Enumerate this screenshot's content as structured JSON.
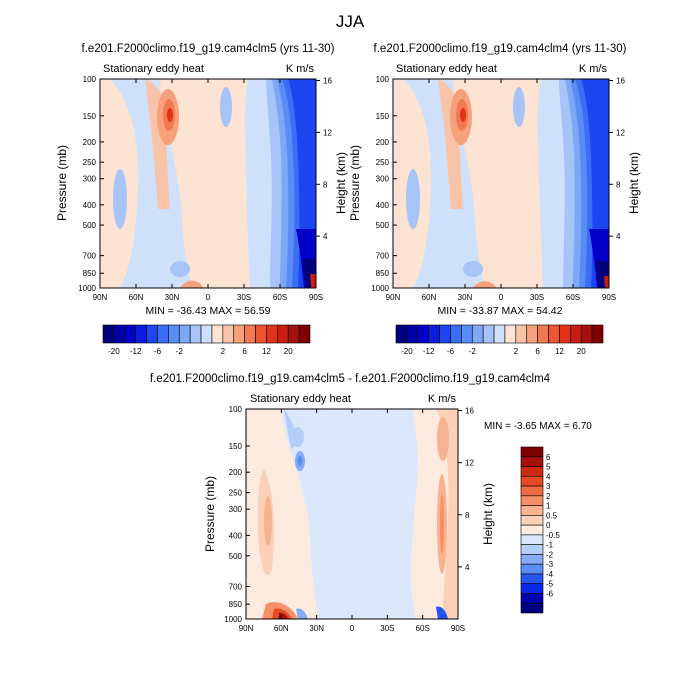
{
  "figure_title": "JJA",
  "colors": {
    "neg": [
      "#00007f",
      "#0000a6",
      "#0000c8",
      "#0a1ee0",
      "#1e46f0",
      "#3c6ef5",
      "#5a8cf5",
      "#7ea8f5",
      "#a6c4f7",
      "#cfe0fa"
    ],
    "pos": [
      "#fde3d3",
      "#f9c3a8",
      "#f6a07c",
      "#f27a52",
      "#ed5530",
      "#e23318",
      "#c81d0f",
      "#a5100a",
      "#800000"
    ],
    "diff_neg": [
      "#00007f",
      "#0000b2",
      "#0a28e6",
      "#2855f2",
      "#5a8cf5",
      "#86acf5",
      "#b4cdf8",
      "#dbe8fb"
    ],
    "diff_pos": [
      "#fdeadf",
      "#fbd0b8",
      "#f8b290",
      "#f58f68",
      "#ef6a44",
      "#e64a26",
      "#cc2a12",
      "#a5100a",
      "#800000"
    ]
  },
  "chart_data": [
    {
      "type": "heatmap",
      "title": "f.e201.F2000climo.f19_g19.cam4clm5 (yrs 11-30)",
      "left_label": "Stationary eddy heat",
      "right_label": "K m/s",
      "xlabel": "",
      "ylabel": "Pressure (mb)",
      "ylabel_right": "Height (km)",
      "x_ticks": [
        "90N",
        "60N",
        "30N",
        "0",
        "30S",
        "60S",
        "90S"
      ],
      "y_ticks": [
        "100",
        "150",
        "200",
        "250",
        "300",
        "400",
        "500",
        "700",
        "850",
        "1000"
      ],
      "height_ticks": [
        "16",
        "12",
        "8",
        "4"
      ],
      "x_range": [
        90,
        -90
      ],
      "y_range_mb": [
        100,
        1000
      ],
      "min_max_text": "MIN = -36.43   MAX =  56.59",
      "colorbar_labels": [
        "-20",
        "-12",
        "-6",
        "-2",
        "2",
        "6",
        "12",
        "20"
      ]
    },
    {
      "type": "heatmap",
      "title": "f.e201.F2000climo.f19_g19.cam4clm4 (yrs 11-30)",
      "left_label": "Stationary eddy heat",
      "right_label": "K m/s",
      "xlabel": "",
      "ylabel": "Pressure (mb)",
      "ylabel_right": "Height (km)",
      "x_ticks": [
        "90N",
        "60N",
        "30N",
        "0",
        "30S",
        "60S",
        "90S"
      ],
      "y_ticks": [
        "100",
        "150",
        "200",
        "250",
        "300",
        "400",
        "500",
        "700",
        "850",
        "1000"
      ],
      "height_ticks": [
        "16",
        "12",
        "8",
        "4"
      ],
      "x_range": [
        90,
        -90
      ],
      "y_range_mb": [
        100,
        1000
      ],
      "min_max_text": "MIN = -33.87   MAX =  54.42",
      "colorbar_labels": [
        "-20",
        "-12",
        "-6",
        "-2",
        "2",
        "6",
        "12",
        "20"
      ]
    },
    {
      "type": "heatmap",
      "title": "f.e201.F2000climo.f19_g19.cam4clm5 - f.e201.F2000climo.f19_g19.cam4clm4",
      "left_label": "Stationary eddy heat",
      "right_label": "K m/s",
      "xlabel": "",
      "ylabel": "Pressure (mb)",
      "ylabel_right": "Height (km)",
      "x_ticks": [
        "90N",
        "60N",
        "30N",
        "0",
        "30S",
        "60S",
        "90S"
      ],
      "y_ticks": [
        "100",
        "150",
        "200",
        "250",
        "300",
        "400",
        "500",
        "700",
        "850",
        "1000"
      ],
      "height_ticks": [
        "16",
        "12",
        "8",
        "4"
      ],
      "x_range": [
        90,
        -90
      ],
      "y_range_mb": [
        100,
        1000
      ],
      "min_max_text": "MIN =  -3.65  MAX =   6.70",
      "colorbar_labels": [
        "6",
        "5",
        "4",
        "3",
        "2",
        "1",
        "0.5",
        "0",
        "-0.5",
        "-1",
        "-2",
        "-3",
        "-4",
        "-5",
        "-6"
      ]
    }
  ]
}
